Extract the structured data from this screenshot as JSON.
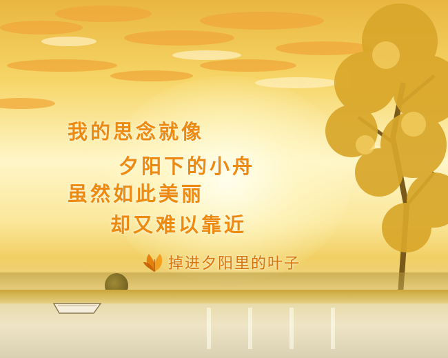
{
  "poem": {
    "lines": [
      "我的思念就像",
      "夕阳下的小舟",
      "虽然如此美丽",
      "却又难以靠近"
    ]
  },
  "signature": {
    "text": "掉进夕阳里的叶子",
    "icon": "leaf-icon"
  },
  "colors": {
    "poem_text": "#ec8a12",
    "signature_text": "#d9740b",
    "sky": "#f6d566"
  }
}
